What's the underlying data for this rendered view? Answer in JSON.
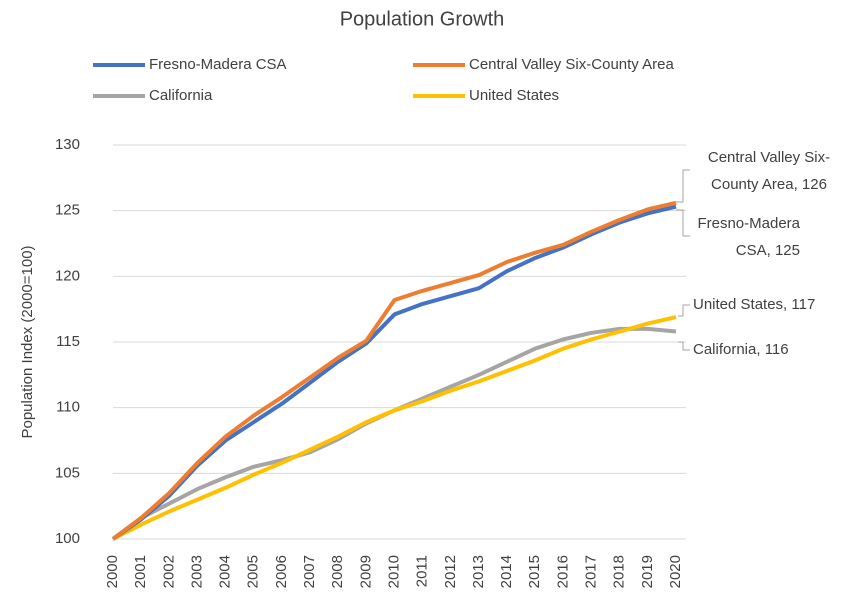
{
  "chart_data": {
    "type": "line",
    "title": "Population Growth",
    "y_label": "Population Index (2000=100)",
    "categories": [
      "2000",
      "2001",
      "2002",
      "2003",
      "2004",
      "2005",
      "2006",
      "2007",
      "2008",
      "2009",
      "2010",
      "2011",
      "2012",
      "2013",
      "2014",
      "2015",
      "2016",
      "2017",
      "2018",
      "2019",
      "2020"
    ],
    "series": [
      {
        "name": "Fresno-Madera CSA",
        "color": "#4472c4",
        "values": [
          100,
          101.5,
          103.3,
          105.6,
          107.5,
          108.9,
          110.3,
          111.9,
          113.5,
          114.9,
          117.1,
          117.9,
          118.5,
          119.1,
          120.4,
          121.4,
          122.2,
          123.2,
          124.1,
          124.8,
          125.3
        ]
      },
      {
        "name": "Central Valley Six-County Area",
        "color": "#ed7d31",
        "values": [
          100,
          101.6,
          103.5,
          105.8,
          107.8,
          109.4,
          110.8,
          112.3,
          113.8,
          115.1,
          118.2,
          118.9,
          119.5,
          120.1,
          121.1,
          121.8,
          122.4,
          123.4,
          124.3,
          125.1,
          125.6
        ]
      },
      {
        "name": "California",
        "color": "#a5a5a5",
        "values": [
          100,
          101.6,
          102.7,
          103.8,
          104.7,
          105.5,
          106.0,
          106.6,
          107.6,
          108.8,
          109.8,
          110.7,
          111.6,
          112.5,
          113.5,
          114.5,
          115.2,
          115.7,
          116.0,
          116.0,
          115.8
        ]
      },
      {
        "name": "United States",
        "color": "#ffc000",
        "values": [
          100,
          101.1,
          102.1,
          103.0,
          103.9,
          104.9,
          105.8,
          106.8,
          107.8,
          108.9,
          109.8,
          110.5,
          111.3,
          112.0,
          112.8,
          113.6,
          114.5,
          115.2,
          115.8,
          116.4,
          116.9
        ]
      }
    ],
    "annotations": [
      {
        "lines": [
          "Fresno-Madera",
          "CSA, 125"
        ]
      },
      {
        "lines": [
          "Central Valley Six-",
          "County Area, 126"
        ]
      },
      {
        "lines": [
          "California, 116"
        ]
      },
      {
        "lines": [
          "United States, 117"
        ]
      }
    ],
    "ylim": [
      100,
      130
    ],
    "yticks": [
      100,
      105,
      110,
      115,
      120,
      125,
      130
    ],
    "grid": true
  }
}
